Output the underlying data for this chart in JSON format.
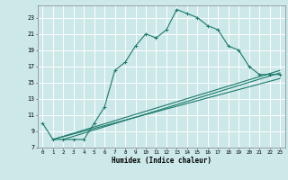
{
  "title": "",
  "xlabel": "Humidex (Indice chaleur)",
  "ylabel": "",
  "bg_color": "#cce8e8",
  "grid_color": "#ffffff",
  "line_color": "#1a7a6a",
  "xlim": [
    -0.5,
    23.5
  ],
  "ylim": [
    7,
    24.5
  ],
  "yticks": [
    7,
    9,
    11,
    13,
    15,
    17,
    19,
    21,
    23
  ],
  "xticks": [
    0,
    1,
    2,
    3,
    4,
    5,
    6,
    7,
    8,
    9,
    10,
    11,
    12,
    13,
    14,
    15,
    16,
    17,
    18,
    19,
    20,
    21,
    22,
    23
  ],
  "line1_x": [
    0,
    1,
    2,
    3,
    4,
    5,
    6,
    7,
    8,
    9,
    10,
    11,
    12,
    13,
    14,
    15,
    16,
    17,
    18,
    19,
    20,
    21,
    22,
    23
  ],
  "line1_y": [
    10,
    8,
    8,
    8,
    8,
    10,
    12,
    16.5,
    17.5,
    19.5,
    21,
    20.5,
    21.5,
    24,
    23.5,
    23,
    22,
    21.5,
    19.5,
    19,
    17,
    16,
    16,
    16
  ],
  "line2_x": [
    1,
    23
  ],
  "line2_y": [
    8,
    16.5
  ],
  "line3_x": [
    1,
    23
  ],
  "line3_y": [
    8,
    15.5
  ],
  "line4_x": [
    2,
    23
  ],
  "line4_y": [
    8,
    16.2
  ]
}
